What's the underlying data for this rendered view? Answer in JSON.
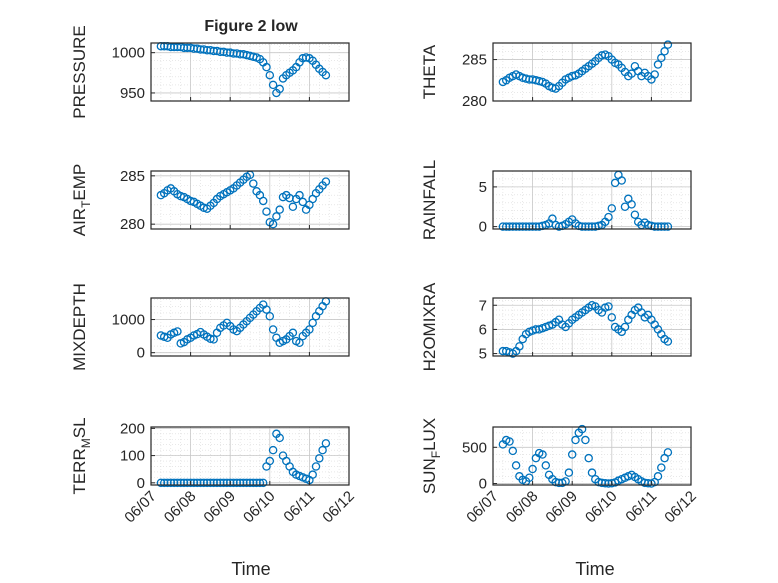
{
  "figure": {
    "title": "Figure 2 low",
    "marker_color": "#0072BD"
  },
  "chart_data": [
    {
      "type": "scatter",
      "ylabel": "PRESSURE",
      "ylim": [
        940,
        1012
      ],
      "yticks": [
        950,
        1000
      ],
      "xlim": [
        "06/07",
        "06/12"
      ],
      "xticks": [
        "06/07",
        "06/08",
        "06/09",
        "06/10",
        "06/11",
        "06/12"
      ],
      "grid": true,
      "x": [
        "06/07 06:00",
        "06/07 08:00",
        "06/07 10:00",
        "06/07 12:00",
        "06/07 14:00",
        "06/07 16:00",
        "06/07 18:00",
        "06/07 20:00",
        "06/07 22:00",
        "06/08 00:00",
        "06/08 02:00",
        "06/08 04:00",
        "06/08 06:00",
        "06/08 08:00",
        "06/08 10:00",
        "06/08 12:00",
        "06/08 14:00",
        "06/08 16:00",
        "06/08 18:00",
        "06/08 20:00",
        "06/08 22:00",
        "06/09 00:00",
        "06/09 02:00",
        "06/09 04:00",
        "06/09 06:00",
        "06/09 08:00",
        "06/09 10:00",
        "06/09 12:00",
        "06/09 14:00",
        "06/09 16:00",
        "06/09 18:00",
        "06/09 20:00",
        "06/09 22:00",
        "06/10 00:00",
        "06/10 02:00",
        "06/10 04:00",
        "06/10 06:00",
        "06/10 08:00",
        "06/10 10:00",
        "06/10 12:00",
        "06/10 14:00",
        "06/10 16:00",
        "06/10 18:00",
        "06/10 20:00",
        "06/10 22:00",
        "06/11 00:00",
        "06/11 02:00",
        "06/11 04:00",
        "06/11 06:00",
        "06/11 08:00",
        "06/11 10:00"
      ],
      "values": [
        1008,
        1008,
        1008,
        1007,
        1007,
        1007,
        1007,
        1006,
        1006,
        1006,
        1005,
        1005,
        1004,
        1004,
        1003,
        1003,
        1002,
        1002,
        1001,
        1001,
        1000,
        1000,
        999,
        999,
        998,
        998,
        997,
        996,
        995,
        994,
        992,
        988,
        982,
        972,
        960,
        950,
        955,
        968,
        972,
        975,
        978,
        982,
        988,
        993,
        994,
        993,
        990,
        985,
        980,
        976,
        972
      ]
    },
    {
      "type": "scatter",
      "ylabel": "THETA",
      "ylim": [
        280,
        287
      ],
      "yticks": [
        280,
        285
      ],
      "xlim": [
        "06/07",
        "06/12"
      ],
      "xticks": [
        "06/07",
        "06/08",
        "06/09",
        "06/10",
        "06/11",
        "06/12"
      ],
      "grid": true,
      "x": [
        "06/07 06:00",
        "06/07 08:00",
        "06/07 10:00",
        "06/07 12:00",
        "06/07 14:00",
        "06/07 16:00",
        "06/07 18:00",
        "06/07 20:00",
        "06/07 22:00",
        "06/08 00:00",
        "06/08 02:00",
        "06/08 04:00",
        "06/08 06:00",
        "06/08 08:00",
        "06/08 10:00",
        "06/08 12:00",
        "06/08 14:00",
        "06/08 16:00",
        "06/08 18:00",
        "06/08 20:00",
        "06/08 22:00",
        "06/09 00:00",
        "06/09 02:00",
        "06/09 04:00",
        "06/09 06:00",
        "06/09 08:00",
        "06/09 10:00",
        "06/09 12:00",
        "06/09 14:00",
        "06/09 16:00",
        "06/09 18:00",
        "06/09 20:00",
        "06/09 22:00",
        "06/10 00:00",
        "06/10 02:00",
        "06/10 04:00",
        "06/10 06:00",
        "06/10 08:00",
        "06/10 10:00",
        "06/10 12:00",
        "06/10 14:00",
        "06/10 16:00",
        "06/10 18:00",
        "06/10 20:00",
        "06/10 22:00",
        "06/11 00:00",
        "06/11 02:00",
        "06/11 04:00",
        "06/11 06:00",
        "06/11 08:00",
        "06/11 10:00"
      ],
      "values": [
        282.3,
        282.5,
        282.8,
        283.0,
        283.2,
        283.0,
        282.8,
        282.7,
        282.6,
        282.6,
        282.5,
        282.4,
        282.3,
        282.1,
        281.8,
        281.6,
        281.5,
        281.8,
        282.2,
        282.6,
        282.8,
        283.0,
        283.1,
        283.3,
        283.6,
        283.9,
        284.2,
        284.5,
        284.8,
        285.2,
        285.5,
        285.6,
        285.4,
        285.0,
        284.6,
        284.4,
        284.0,
        283.5,
        283.0,
        283.3,
        284.2,
        283.6,
        283.0,
        283.4,
        283.0,
        282.6,
        283.2,
        284.4,
        285.2,
        286.0,
        286.8
      ]
    },
    {
      "type": "scatter",
      "ylabel": "AIR_TEMP",
      "ylim": [
        279.5,
        285.5
      ],
      "yticks": [
        280,
        285
      ],
      "xlim": [
        "06/07",
        "06/12"
      ],
      "xticks": [
        "06/07",
        "06/08",
        "06/09",
        "06/10",
        "06/11",
        "06/12"
      ],
      "grid": true,
      "x": [
        "06/07 06:00",
        "06/07 08:00",
        "06/07 10:00",
        "06/07 12:00",
        "06/07 14:00",
        "06/07 16:00",
        "06/07 18:00",
        "06/07 20:00",
        "06/07 22:00",
        "06/08 00:00",
        "06/08 02:00",
        "06/08 04:00",
        "06/08 06:00",
        "06/08 08:00",
        "06/08 10:00",
        "06/08 12:00",
        "06/08 14:00",
        "06/08 16:00",
        "06/08 18:00",
        "06/08 20:00",
        "06/08 22:00",
        "06/09 00:00",
        "06/09 02:00",
        "06/09 04:00",
        "06/09 06:00",
        "06/09 08:00",
        "06/09 10:00",
        "06/09 12:00",
        "06/09 14:00",
        "06/09 16:00",
        "06/09 18:00",
        "06/09 20:00",
        "06/09 22:00",
        "06/10 00:00",
        "06/10 02:00",
        "06/10 04:00",
        "06/10 06:00",
        "06/10 08:00",
        "06/10 10:00",
        "06/10 12:00",
        "06/10 14:00",
        "06/10 16:00",
        "06/10 18:00",
        "06/10 20:00",
        "06/10 22:00",
        "06/11 00:00",
        "06/11 02:00",
        "06/11 04:00",
        "06/11 06:00",
        "06/11 08:00",
        "06/11 10:00"
      ],
      "values": [
        283.0,
        283.2,
        283.5,
        283.7,
        283.4,
        283.1,
        282.9,
        282.8,
        282.6,
        282.4,
        282.3,
        282.1,
        281.9,
        281.7,
        281.6,
        281.9,
        282.2,
        282.6,
        282.9,
        283.1,
        283.3,
        283.5,
        283.7,
        284.0,
        284.3,
        284.6,
        284.9,
        285.1,
        284.2,
        283.4,
        283.0,
        282.4,
        281.3,
        280.2,
        280.0,
        280.8,
        281.5,
        282.8,
        283.0,
        282.7,
        281.8,
        282.6,
        283.0,
        282.3,
        281.5,
        282.0,
        282.6,
        283.2,
        283.6,
        284.0,
        284.4
      ]
    },
    {
      "type": "scatter",
      "ylabel": "RAINFALL",
      "ylim": [
        -0.3,
        7
      ],
      "yticks": [
        0,
        5
      ],
      "xlim": [
        "06/07",
        "06/12"
      ],
      "xticks": [
        "06/07",
        "06/08",
        "06/09",
        "06/10",
        "06/11",
        "06/12"
      ],
      "grid": true,
      "x": [
        "06/07 06:00",
        "06/07 08:00",
        "06/07 10:00",
        "06/07 12:00",
        "06/07 14:00",
        "06/07 16:00",
        "06/07 18:00",
        "06/07 20:00",
        "06/07 22:00",
        "06/08 00:00",
        "06/08 02:00",
        "06/08 04:00",
        "06/08 06:00",
        "06/08 08:00",
        "06/08 10:00",
        "06/08 12:00",
        "06/08 14:00",
        "06/08 16:00",
        "06/08 18:00",
        "06/08 20:00",
        "06/08 22:00",
        "06/09 00:00",
        "06/09 02:00",
        "06/09 04:00",
        "06/09 06:00",
        "06/09 08:00",
        "06/09 10:00",
        "06/09 12:00",
        "06/09 14:00",
        "06/09 16:00",
        "06/09 18:00",
        "06/09 20:00",
        "06/09 22:00",
        "06/10 00:00",
        "06/10 02:00",
        "06/10 04:00",
        "06/10 06:00",
        "06/10 08:00",
        "06/10 10:00",
        "06/10 12:00",
        "06/10 14:00",
        "06/10 16:00",
        "06/10 18:00",
        "06/10 20:00",
        "06/10 22:00",
        "06/11 00:00",
        "06/11 02:00",
        "06/11 04:00",
        "06/11 06:00",
        "06/11 08:00",
        "06/11 10:00"
      ],
      "values": [
        0,
        0,
        0,
        0,
        0,
        0,
        0,
        0,
        0,
        0,
        0,
        0,
        0.1,
        0.2,
        0.4,
        1.0,
        0.2,
        0,
        0.1,
        0.3,
        0.6,
        0.9,
        0.4,
        0.1,
        0,
        0,
        0,
        0,
        0,
        0.1,
        0.2,
        0.6,
        1.2,
        2.3,
        5.5,
        6.5,
        5.8,
        2.5,
        3.5,
        2.8,
        1.5,
        0.6,
        0.2,
        0.5,
        0.2,
        0.1,
        0,
        0,
        0,
        0,
        0
      ]
    },
    {
      "type": "scatter",
      "ylabel": "MIXDEPTH",
      "ylim": [
        -100,
        1650
      ],
      "yticks": [
        0,
        1000
      ],
      "xlim": [
        "06/07",
        "06/12"
      ],
      "xticks": [
        "06/07",
        "06/08",
        "06/09",
        "06/10",
        "06/11",
        "06/12"
      ],
      "grid": true,
      "x": [
        "06/07 06:00",
        "06/07 08:00",
        "06/07 10:00",
        "06/07 12:00",
        "06/07 14:00",
        "06/07 16:00",
        "06/07 18:00",
        "06/07 20:00",
        "06/07 22:00",
        "06/08 00:00",
        "06/08 02:00",
        "06/08 04:00",
        "06/08 06:00",
        "06/08 08:00",
        "06/08 10:00",
        "06/08 12:00",
        "06/08 14:00",
        "06/08 16:00",
        "06/08 18:00",
        "06/08 20:00",
        "06/08 22:00",
        "06/09 00:00",
        "06/09 02:00",
        "06/09 04:00",
        "06/09 06:00",
        "06/09 08:00",
        "06/09 10:00",
        "06/09 12:00",
        "06/09 14:00",
        "06/09 16:00",
        "06/09 18:00",
        "06/09 20:00",
        "06/09 22:00",
        "06/10 00:00",
        "06/10 02:00",
        "06/10 04:00",
        "06/10 06:00",
        "06/10 08:00",
        "06/10 10:00",
        "06/10 12:00",
        "06/10 14:00",
        "06/10 16:00",
        "06/10 18:00",
        "06/10 20:00",
        "06/10 22:00",
        "06/11 00:00",
        "06/11 02:00",
        "06/11 04:00",
        "06/11 06:00",
        "06/11 08:00",
        "06/11 10:00"
      ],
      "values": [
        520,
        480,
        450,
        550,
        600,
        640,
        280,
        320,
        400,
        450,
        520,
        560,
        620,
        550,
        480,
        420,
        400,
        600,
        750,
        820,
        900,
        800,
        700,
        650,
        750,
        850,
        950,
        1050,
        1150,
        1250,
        1350,
        1450,
        1300,
        1100,
        700,
        450,
        300,
        350,
        400,
        500,
        600,
        350,
        300,
        500,
        600,
        700,
        900,
        1100,
        1250,
        1400,
        1550
      ]
    },
    {
      "type": "scatter",
      "ylabel": "H2OMIXRA",
      "ylim": [
        4.9,
        7.3
      ],
      "yticks": [
        5,
        6,
        7
      ],
      "xlim": [
        "06/07",
        "06/12"
      ],
      "xticks": [
        "06/07",
        "06/08",
        "06/09",
        "06/10",
        "06/11",
        "06/12"
      ],
      "grid": true,
      "x": [
        "06/07 06:00",
        "06/07 08:00",
        "06/07 10:00",
        "06/07 12:00",
        "06/07 14:00",
        "06/07 16:00",
        "06/07 18:00",
        "06/07 20:00",
        "06/07 22:00",
        "06/08 00:00",
        "06/08 02:00",
        "06/08 04:00",
        "06/08 06:00",
        "06/08 08:00",
        "06/08 10:00",
        "06/08 12:00",
        "06/08 14:00",
        "06/08 16:00",
        "06/08 18:00",
        "06/08 20:00",
        "06/08 22:00",
        "06/09 00:00",
        "06/09 02:00",
        "06/09 04:00",
        "06/09 06:00",
        "06/09 08:00",
        "06/09 10:00",
        "06/09 12:00",
        "06/09 14:00",
        "06/09 16:00",
        "06/09 18:00",
        "06/09 20:00",
        "06/09 22:00",
        "06/10 00:00",
        "06/10 02:00",
        "06/10 04:00",
        "06/10 06:00",
        "06/10 08:00",
        "06/10 10:00",
        "06/10 12:00",
        "06/10 14:00",
        "06/10 16:00",
        "06/10 18:00",
        "06/10 20:00",
        "06/10 22:00",
        "06/11 00:00",
        "06/11 02:00",
        "06/11 04:00",
        "06/11 06:00",
        "06/11 08:00",
        "06/11 10:00"
      ],
      "values": [
        5.1,
        5.1,
        5.05,
        5.0,
        5.1,
        5.3,
        5.6,
        5.8,
        5.9,
        5.95,
        6.0,
        6.0,
        6.05,
        6.1,
        6.15,
        6.2,
        6.3,
        6.4,
        6.2,
        6.1,
        6.25,
        6.4,
        6.5,
        6.6,
        6.7,
        6.8,
        6.9,
        7.0,
        6.95,
        6.8,
        6.7,
        6.9,
        6.95,
        6.5,
        6.1,
        6.0,
        5.9,
        6.1,
        6.4,
        6.6,
        6.8,
        6.9,
        6.7,
        6.5,
        6.6,
        6.4,
        6.2,
        6.0,
        5.8,
        5.6,
        5.5
      ]
    },
    {
      "type": "scatter",
      "ylabel": "TERR_MSL",
      "ylim": [
        -8,
        205
      ],
      "yticks": [
        0,
        100,
        200
      ],
      "xlim": [
        "06/07",
        "06/12"
      ],
      "xticks": [
        "06/07",
        "06/08",
        "06/09",
        "06/10",
        "06/11",
        "06/12"
      ],
      "grid": true,
      "x": [
        "06/07 06:00",
        "06/07 08:00",
        "06/07 10:00",
        "06/07 12:00",
        "06/07 14:00",
        "06/07 16:00",
        "06/07 18:00",
        "06/07 20:00",
        "06/07 22:00",
        "06/08 00:00",
        "06/08 02:00",
        "06/08 04:00",
        "06/08 06:00",
        "06/08 08:00",
        "06/08 10:00",
        "06/08 12:00",
        "06/08 14:00",
        "06/08 16:00",
        "06/08 18:00",
        "06/08 20:00",
        "06/08 22:00",
        "06/09 00:00",
        "06/09 02:00",
        "06/09 04:00",
        "06/09 06:00",
        "06/09 08:00",
        "06/09 10:00",
        "06/09 12:00",
        "06/09 14:00",
        "06/09 16:00",
        "06/09 18:00",
        "06/09 20:00",
        "06/09 22:00",
        "06/10 00:00",
        "06/10 02:00",
        "06/10 04:00",
        "06/10 06:00",
        "06/10 08:00",
        "06/10 10:00",
        "06/10 12:00",
        "06/10 14:00",
        "06/10 16:00",
        "06/10 18:00",
        "06/10 20:00",
        "06/10 22:00",
        "06/11 00:00",
        "06/11 02:00",
        "06/11 04:00",
        "06/11 06:00",
        "06/11 08:00",
        "06/11 10:00"
      ],
      "values": [
        0,
        0,
        0,
        0,
        0,
        0,
        0,
        0,
        0,
        0,
        0,
        0,
        0,
        0,
        0,
        0,
        0,
        0,
        0,
        0,
        0,
        0,
        0,
        0,
        0,
        0,
        0,
        0,
        0,
        0,
        0,
        0,
        60,
        80,
        120,
        180,
        165,
        100,
        80,
        60,
        40,
        30,
        25,
        20,
        15,
        10,
        30,
        60,
        90,
        120,
        145
      ]
    },
    {
      "type": "scatter",
      "ylabel": "SUN_FLUX",
      "ylim": [
        -20,
        780
      ],
      "yticks": [
        0,
        500
      ],
      "xlim": [
        "06/07",
        "06/12"
      ],
      "xticks": [
        "06/07",
        "06/08",
        "06/09",
        "06/10",
        "06/11",
        "06/12"
      ],
      "grid": true,
      "x": [
        "06/07 06:00",
        "06/07 08:00",
        "06/07 10:00",
        "06/07 12:00",
        "06/07 14:00",
        "06/07 16:00",
        "06/07 18:00",
        "06/07 20:00",
        "06/07 22:00",
        "06/08 00:00",
        "06/08 02:00",
        "06/08 04:00",
        "06/08 06:00",
        "06/08 08:00",
        "06/08 10:00",
        "06/08 12:00",
        "06/08 14:00",
        "06/08 16:00",
        "06/08 18:00",
        "06/08 20:00",
        "06/08 22:00",
        "06/09 00:00",
        "06/09 02:00",
        "06/09 04:00",
        "06/09 06:00",
        "06/09 08:00",
        "06/09 10:00",
        "06/09 12:00",
        "06/09 14:00",
        "06/09 16:00",
        "06/09 18:00",
        "06/09 20:00",
        "06/09 22:00",
        "06/10 00:00",
        "06/10 02:00",
        "06/10 04:00",
        "06/10 06:00",
        "06/10 08:00",
        "06/10 10:00",
        "06/10 12:00",
        "06/10 14:00",
        "06/10 16:00",
        "06/10 18:00",
        "06/10 20:00",
        "06/10 22:00",
        "06/11 00:00",
        "06/11 02:00",
        "06/11 04:00",
        "06/11 06:00",
        "06/11 08:00",
        "06/11 10:00"
      ],
      "values": [
        540,
        600,
        580,
        450,
        250,
        100,
        50,
        30,
        80,
        200,
        350,
        420,
        400,
        250,
        120,
        60,
        20,
        10,
        10,
        30,
        150,
        400,
        600,
        700,
        750,
        600,
        350,
        150,
        60,
        20,
        10,
        5,
        0,
        5,
        15,
        40,
        60,
        80,
        100,
        120,
        90,
        60,
        30,
        10,
        5,
        0,
        20,
        100,
        220,
        350,
        430
      ]
    }
  ],
  "axes_labels": {
    "xlabel_left": "Time",
    "xlabel_right": "Time"
  }
}
